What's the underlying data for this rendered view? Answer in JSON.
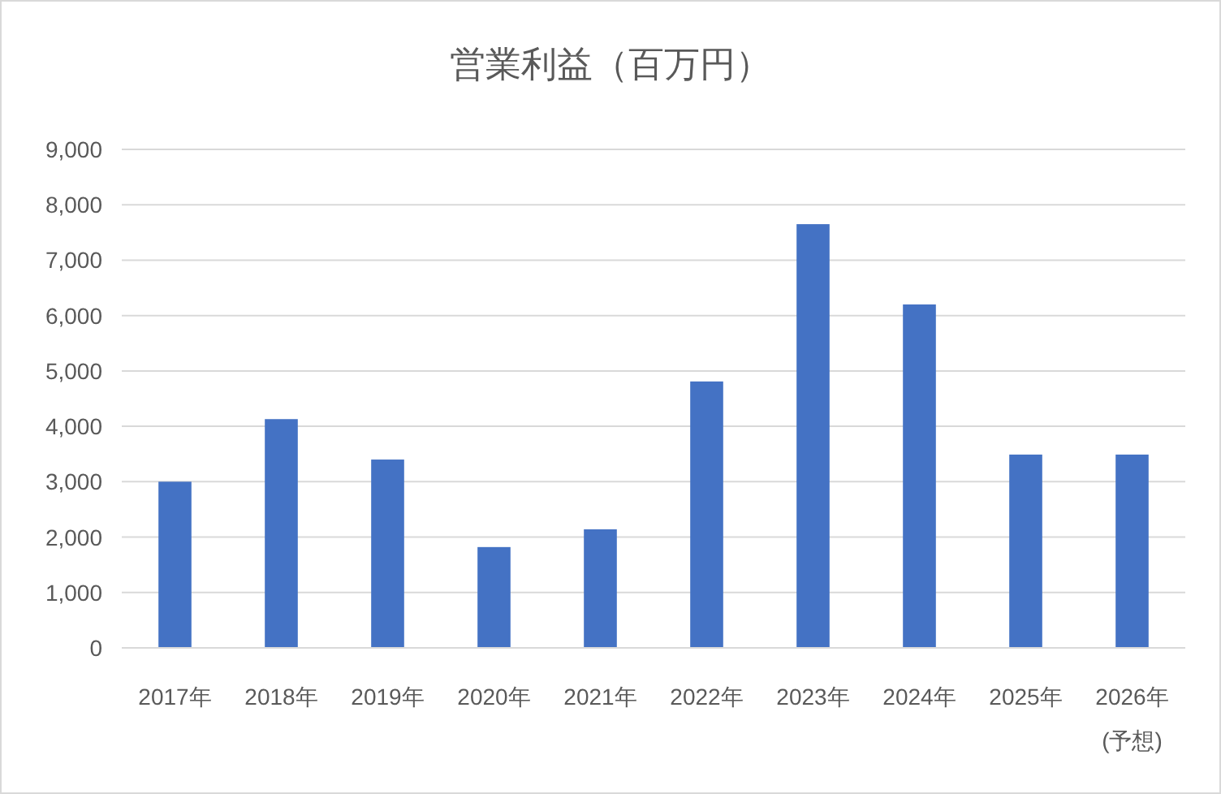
{
  "chart_data": {
    "type": "bar",
    "title": "営業利益（百万円）",
    "categories": [
      "2017年",
      "2018年",
      "2019年",
      "2020年",
      "2021年",
      "2022年",
      "2023年",
      "2024年",
      "2025年",
      "2026年\n(予想)"
    ],
    "series": [
      {
        "color": "#4472c4",
        "values": [
          3000,
          4130,
          3400,
          1820,
          2140,
          4810,
          7650,
          6200,
          3490,
          3490
        ]
      }
    ],
    "ylim": [
      0,
      9000
    ],
    "yticks": [
      {
        "value": 0,
        "label": "0"
      },
      {
        "value": 1000,
        "label": "1,000"
      },
      {
        "value": 2000,
        "label": "2,000"
      },
      {
        "value": 3000,
        "label": "3,000"
      },
      {
        "value": 4000,
        "label": "4,000"
      },
      {
        "value": 5000,
        "label": "5,000"
      },
      {
        "value": 6000,
        "label": "6,000"
      },
      {
        "value": 7000,
        "label": "7,000"
      },
      {
        "value": 8000,
        "label": "8,000"
      },
      {
        "value": 9000,
        "label": "9,000"
      }
    ],
    "grid": "y"
  }
}
